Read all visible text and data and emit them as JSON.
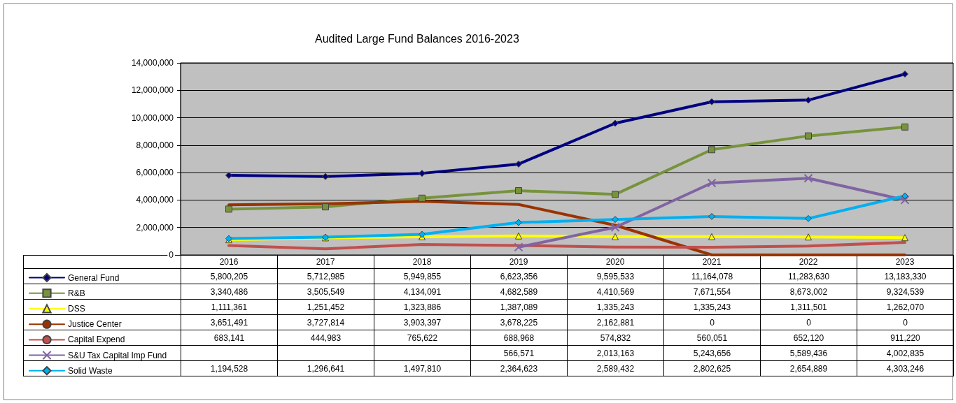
{
  "chart_data": {
    "type": "line",
    "title": "Audited Large Fund Balances 2016-2023",
    "categories": [
      "2016",
      "2017",
      "2018",
      "2019",
      "2020",
      "2021",
      "2022",
      "2023"
    ],
    "ylim": [
      0,
      14000000
    ],
    "yticks": [
      {
        "value": 0,
        "label": "0"
      },
      {
        "value": 2000000,
        "label": "2,000,000"
      },
      {
        "value": 4000000,
        "label": "4,000,000"
      },
      {
        "value": 6000000,
        "label": "6,000,000"
      },
      {
        "value": 8000000,
        "label": "8,000,000"
      },
      {
        "value": 10000000,
        "label": "10,000,000"
      },
      {
        "value": 12000000,
        "label": "12,000,000"
      },
      {
        "value": 14000000,
        "label": "14,000,000"
      }
    ],
    "grid": "y",
    "legend": "bottom",
    "series": [
      {
        "name": "General Fund",
        "color": "#000080",
        "marker": "diamond",
        "values": [
          5800205,
          5712985,
          5949855,
          6623356,
          9595533,
          11164078,
          11283630,
          13183330
        ],
        "value_labels": [
          "5,800,205",
          "5,712,985",
          "5,949,855",
          "6,623,356",
          "9,595,533",
          "11,164,078",
          "11,283,630",
          "13,183,330"
        ]
      },
      {
        "name": "R&B",
        "color": "#77933c",
        "marker": "square",
        "values": [
          3340486,
          3505549,
          4134091,
          4682589,
          4410569,
          7671554,
          8673002,
          9324539
        ],
        "value_labels": [
          "3,340,486",
          "3,505,549",
          "4,134,091",
          "4,682,589",
          "4,410,569",
          "7,671,554",
          "8,673,002",
          "9,324,539"
        ]
      },
      {
        "name": "DSS",
        "color": "#ffff00",
        "marker": "triangle",
        "values": [
          1111361,
          1251452,
          1323886,
          1387089,
          1335243,
          1335243,
          1311501,
          1262070
        ],
        "value_labels": [
          "1,111,361",
          "1,251,452",
          "1,323,886",
          "1,387,089",
          "1,335,243",
          "1,335,243",
          "1,311,501",
          "1,262,070"
        ]
      },
      {
        "name": "Justice Center",
        "color": "#993300",
        "marker": "none",
        "values": [
          3651491,
          3727814,
          3903397,
          3678225,
          2162881,
          0,
          0,
          0
        ],
        "value_labels": [
          "3,651,491",
          "3,727,814",
          "3,903,397",
          "3,678,225",
          "2,162,881",
          "0",
          "0",
          "0"
        ]
      },
      {
        "name": "Capital Expend",
        "color": "#c0504d",
        "marker": "none",
        "values": [
          683141,
          444983,
          765622,
          688968,
          574832,
          560051,
          652120,
          911220
        ],
        "value_labels": [
          "683,141",
          "444,983",
          "765,622",
          "688,968",
          "574,832",
          "560,051",
          "652,120",
          "911,220"
        ]
      },
      {
        "name": "S&U Tax Capital Imp Fund",
        "color": "#8064a2",
        "marker": "cross",
        "values": [
          null,
          null,
          null,
          566571,
          2013163,
          5243656,
          5589436,
          4002835
        ],
        "value_labels": [
          null,
          null,
          null,
          "566,571",
          "2,013,163",
          "5,243,656",
          "5,589,436",
          "4,002,835"
        ]
      },
      {
        "name": "Solid Waste",
        "color": "#00b0f0",
        "marker": "diamond",
        "values": [
          1194528,
          1296641,
          1497810,
          2364623,
          2589432,
          2802625,
          2654889,
          4303246
        ],
        "value_labels": [
          "1,194,528",
          "1,296,641",
          "1,497,810",
          "2,364,623",
          "2,589,432",
          "2,802,625",
          "2,654,889",
          "4,303,246"
        ]
      }
    ]
  }
}
